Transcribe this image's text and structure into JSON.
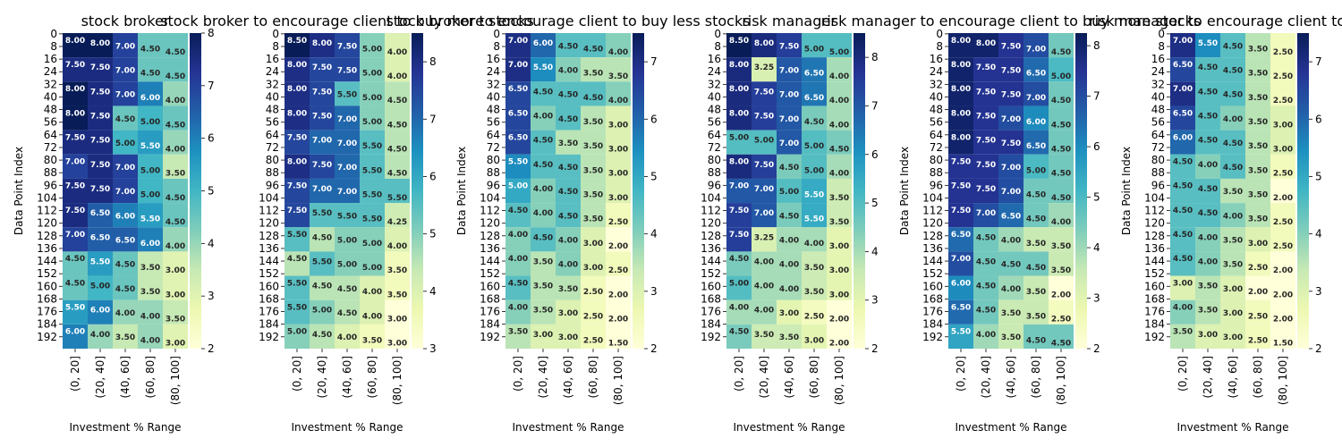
{
  "colormap": {
    "name": "YlGnBu",
    "stops": [
      "#ffffd9",
      "#edf8b1",
      "#c7e9b4",
      "#7fcdbb",
      "#41b6c4",
      "#1d91c0",
      "#225ea8",
      "#253494",
      "#081d58"
    ]
  },
  "chart_data": [
    {
      "type": "heatmap",
      "title": "stock broker",
      "xlabel": "Investment % Range",
      "ylabel": "Data Point Index",
      "categories": [
        "(0, 20]",
        "(20, 40]",
        "(40, 60]",
        "(60, 80]",
        "(80, 100]"
      ],
      "rows": 200,
      "y_ticks": [
        0,
        8,
        16,
        24,
        32,
        40,
        48,
        56,
        64,
        72,
        80,
        88,
        96,
        104,
        112,
        120,
        128,
        136,
        144,
        152,
        160,
        168,
        176,
        184,
        192
      ],
      "vmin": 2,
      "vmax": 8,
      "colorbar_ticks": [
        2,
        3,
        4,
        5,
        6,
        7,
        8
      ],
      "values": [
        [
          8,
          8,
          7,
          4.5,
          4.5
        ],
        [
          7.5,
          7.5,
          7,
          4.5,
          4.5
        ],
        [
          8,
          7.5,
          7,
          6,
          4
        ],
        [
          8,
          7.5,
          4.5,
          5,
          4.5
        ],
        [
          7.5,
          7.5,
          5,
          5.5,
          4
        ],
        [
          7,
          7.5,
          7,
          5,
          3.5
        ],
        [
          7.5,
          7.5,
          7,
          5,
          4.5
        ],
        [
          7.5,
          6.5,
          6,
          5.5,
          4.5
        ],
        [
          7,
          6.5,
          6.5,
          6,
          4
        ],
        [
          4.5,
          5.5,
          4.5,
          3.5,
          3
        ],
        [
          4.5,
          5,
          4.5,
          3.5,
          3
        ],
        [
          5.5,
          6,
          4,
          4,
          3.5
        ],
        [
          6,
          4,
          3.5,
          4,
          3
        ]
      ]
    },
    {
      "type": "heatmap",
      "title": "stock broker to encourage client to buy more stocks",
      "xlabel": "Investment % Range",
      "ylabel": "",
      "categories": [
        "(0, 20]",
        "(20, 40]",
        "(40, 60]",
        "(60, 80]",
        "(80, 100]"
      ],
      "rows": 200,
      "y_ticks": [
        0,
        8,
        16,
        24,
        32,
        40,
        48,
        56,
        64,
        72,
        80,
        88,
        96,
        104,
        112,
        120,
        128,
        136,
        144,
        152,
        160,
        168,
        176,
        184,
        192
      ],
      "vmin": 3,
      "vmax": 8.5,
      "colorbar_ticks": [
        3,
        4,
        5,
        6,
        7,
        8
      ],
      "values": [
        [
          8.5,
          8,
          7.5,
          5,
          4
        ],
        [
          8,
          7.5,
          7.5,
          5,
          4
        ],
        [
          8,
          7.5,
          5.5,
          5,
          4.5
        ],
        [
          8,
          7.5,
          7,
          5,
          4.5
        ],
        [
          7.5,
          7,
          7,
          5.5,
          4.5
        ],
        [
          8,
          7.5,
          7,
          5.5,
          4.5
        ],
        [
          7.5,
          7,
          7,
          5.5,
          5.5
        ],
        [
          7.5,
          5.5,
          5.5,
          5.5,
          4.25
        ],
        [
          5.5,
          4.5,
          5,
          5,
          4
        ],
        [
          4.5,
          5.5,
          5,
          5,
          3.5
        ],
        [
          5.5,
          4.5,
          4.5,
          4,
          3.5
        ],
        [
          5.5,
          5,
          4.5,
          4,
          3
        ],
        [
          5,
          4.5,
          4,
          3.5,
          3
        ]
      ]
    },
    {
      "type": "heatmap",
      "title": "stock broker to encourage client to buy less stocks",
      "xlabel": "Investment % Range",
      "ylabel": "Data Point Index",
      "categories": [
        "(0, 20]",
        "(20, 40]",
        "(40, 60]",
        "(60, 80]",
        "(80, 100]"
      ],
      "rows": 200,
      "y_ticks": [
        0,
        8,
        16,
        24,
        32,
        40,
        48,
        56,
        64,
        72,
        80,
        88,
        96,
        104,
        112,
        120,
        128,
        136,
        144,
        152,
        160,
        168,
        176,
        184,
        192
      ],
      "vmin": 2,
      "vmax": 7.5,
      "colorbar_ticks": [
        2,
        3,
        4,
        5,
        6,
        7
      ],
      "values": [
        [
          7,
          6,
          4.5,
          4.5,
          4
        ],
        [
          7,
          5.5,
          4,
          3.5,
          3.5
        ],
        [
          6.5,
          4.5,
          4.5,
          4.5,
          4
        ],
        [
          6.5,
          4,
          4.5,
          3.5,
          3
        ],
        [
          6.5,
          4.5,
          3.5,
          3.5,
          3
        ],
        [
          5.5,
          4.5,
          4.5,
          3.5,
          3
        ],
        [
          5,
          4,
          4.5,
          3.5,
          3
        ],
        [
          4.5,
          4,
          4.5,
          3.5,
          2.5
        ],
        [
          4,
          4.5,
          4,
          3,
          2
        ],
        [
          4,
          3.5,
          4,
          3,
          2.5
        ],
        [
          4.5,
          3.5,
          3.5,
          2.5,
          2
        ],
        [
          4,
          3.5,
          3,
          2.5,
          2
        ],
        [
          3.5,
          3,
          3,
          2.5,
          1.5
        ]
      ]
    },
    {
      "type": "heatmap",
      "title": "risk manager",
      "xlabel": "Investment % Range",
      "ylabel": "",
      "categories": [
        "(0, 20]",
        "(20, 40]",
        "(40, 60]",
        "(60, 80]",
        "(80, 100]"
      ],
      "rows": 200,
      "y_ticks": [
        0,
        8,
        16,
        24,
        32,
        40,
        48,
        56,
        64,
        72,
        80,
        88,
        96,
        104,
        112,
        120,
        128,
        136,
        144,
        152,
        160,
        168,
        176,
        184,
        192
      ],
      "vmin": 2,
      "vmax": 8.5,
      "colorbar_ticks": [
        2,
        3,
        4,
        5,
        6,
        7,
        8
      ],
      "values": [
        [
          8.5,
          8,
          7.5,
          5,
          5
        ],
        [
          8,
          3.25,
          7,
          6.5,
          4
        ],
        [
          8,
          7.5,
          7,
          6.5,
          4
        ],
        [
          8,
          7.5,
          7,
          4.5,
          4
        ],
        [
          5,
          5,
          7,
          5,
          4.5
        ],
        [
          8,
          7.5,
          4.5,
          5,
          4
        ],
        [
          7,
          7,
          5,
          5.5,
          3.5
        ],
        [
          7.5,
          7,
          4.5,
          5.5,
          3.5
        ],
        [
          7.5,
          3.25,
          4,
          4,
          3
        ],
        [
          4.5,
          4,
          4,
          3.5,
          3
        ],
        [
          5,
          4,
          4,
          3.5,
          3
        ],
        [
          4,
          4,
          3,
          2.5,
          2
        ],
        [
          4.5,
          3.5,
          3.5,
          3,
          2
        ]
      ]
    },
    {
      "type": "heatmap",
      "title": "risk manager to encourage client to buy more stocks",
      "xlabel": "Investment % Range",
      "ylabel": "Data Point Index",
      "categories": [
        "(0, 20]",
        "(20, 40]",
        "(40, 60]",
        "(60, 80]",
        "(80, 100]"
      ],
      "rows": 200,
      "y_ticks": [
        0,
        8,
        16,
        24,
        32,
        40,
        48,
        56,
        64,
        72,
        80,
        88,
        96,
        104,
        112,
        120,
        128,
        136,
        144,
        152,
        160,
        168,
        176,
        184,
        192
      ],
      "vmin": 2,
      "vmax": 8.25,
      "colorbar_ticks": [
        2,
        3,
        4,
        5,
        6,
        7,
        8
      ],
      "values": [
        [
          8,
          8,
          7.5,
          7,
          4.5
        ],
        [
          8,
          7.5,
          7.5,
          6.5,
          5
        ],
        [
          8,
          7.5,
          7.5,
          7,
          4.5
        ],
        [
          8,
          7.5,
          7,
          6,
          4.5
        ],
        [
          8,
          7.5,
          7.5,
          6.5,
          4.5
        ],
        [
          7.5,
          7.5,
          7,
          5,
          4.5
        ],
        [
          7.5,
          7.5,
          7,
          4.5,
          4.5
        ],
        [
          7.5,
          7,
          6.5,
          4.5,
          4
        ],
        [
          6.5,
          4.5,
          4,
          3.5,
          3.5
        ],
        [
          7,
          4.5,
          4.5,
          4.5,
          3.5
        ],
        [
          6,
          4.5,
          4,
          3.5,
          2
        ],
        [
          6.5,
          4.5,
          3.5,
          3.5,
          2.5
        ],
        [
          5.5,
          4,
          3.5,
          4.5,
          4.5
        ]
      ]
    },
    {
      "type": "heatmap",
      "title": "risk manager to encourage client to buy",
      "xlabel": "Investment % Range",
      "ylabel": "Data Point Index",
      "categories": [
        "(0, 20]",
        "(20, 40]",
        "(40, 60]",
        "(60, 80]",
        "(80, 100]"
      ],
      "rows": 200,
      "y_ticks": [
        0,
        8,
        16,
        24,
        32,
        40,
        48,
        56,
        64,
        72,
        80,
        88,
        96,
        104,
        112,
        120,
        128,
        136,
        144,
        152,
        160,
        168,
        176,
        184,
        192
      ],
      "vmin": 2,
      "vmax": 7.5,
      "colorbar_ticks": [
        2,
        3,
        4,
        5,
        6,
        7
      ],
      "values": [
        [
          7,
          5.5,
          4.5,
          3.5,
          2.5
        ],
        [
          6.5,
          4.5,
          4.5,
          3.5,
          2.5
        ],
        [
          7,
          4.5,
          4.5,
          3.5,
          2.5
        ],
        [
          6.5,
          4.5,
          4,
          3.5,
          3
        ],
        [
          6,
          4.5,
          4.5,
          3.5,
          3
        ],
        [
          4.5,
          4,
          4.5,
          3.5,
          2.5
        ],
        [
          4.5,
          4.5,
          3.5,
          3.5,
          2
        ],
        [
          4.5,
          4.5,
          4,
          3.5,
          2.5
        ],
        [
          4.5,
          4,
          3.5,
          3,
          2.5
        ],
        [
          4.5,
          4,
          3.5,
          2.5,
          2
        ],
        [
          3,
          3.5,
          3,
          2,
          2
        ],
        [
          4,
          3.5,
          3,
          2.5,
          2
        ],
        [
          3.5,
          3,
          3,
          2.5,
          1.5
        ]
      ]
    }
  ]
}
